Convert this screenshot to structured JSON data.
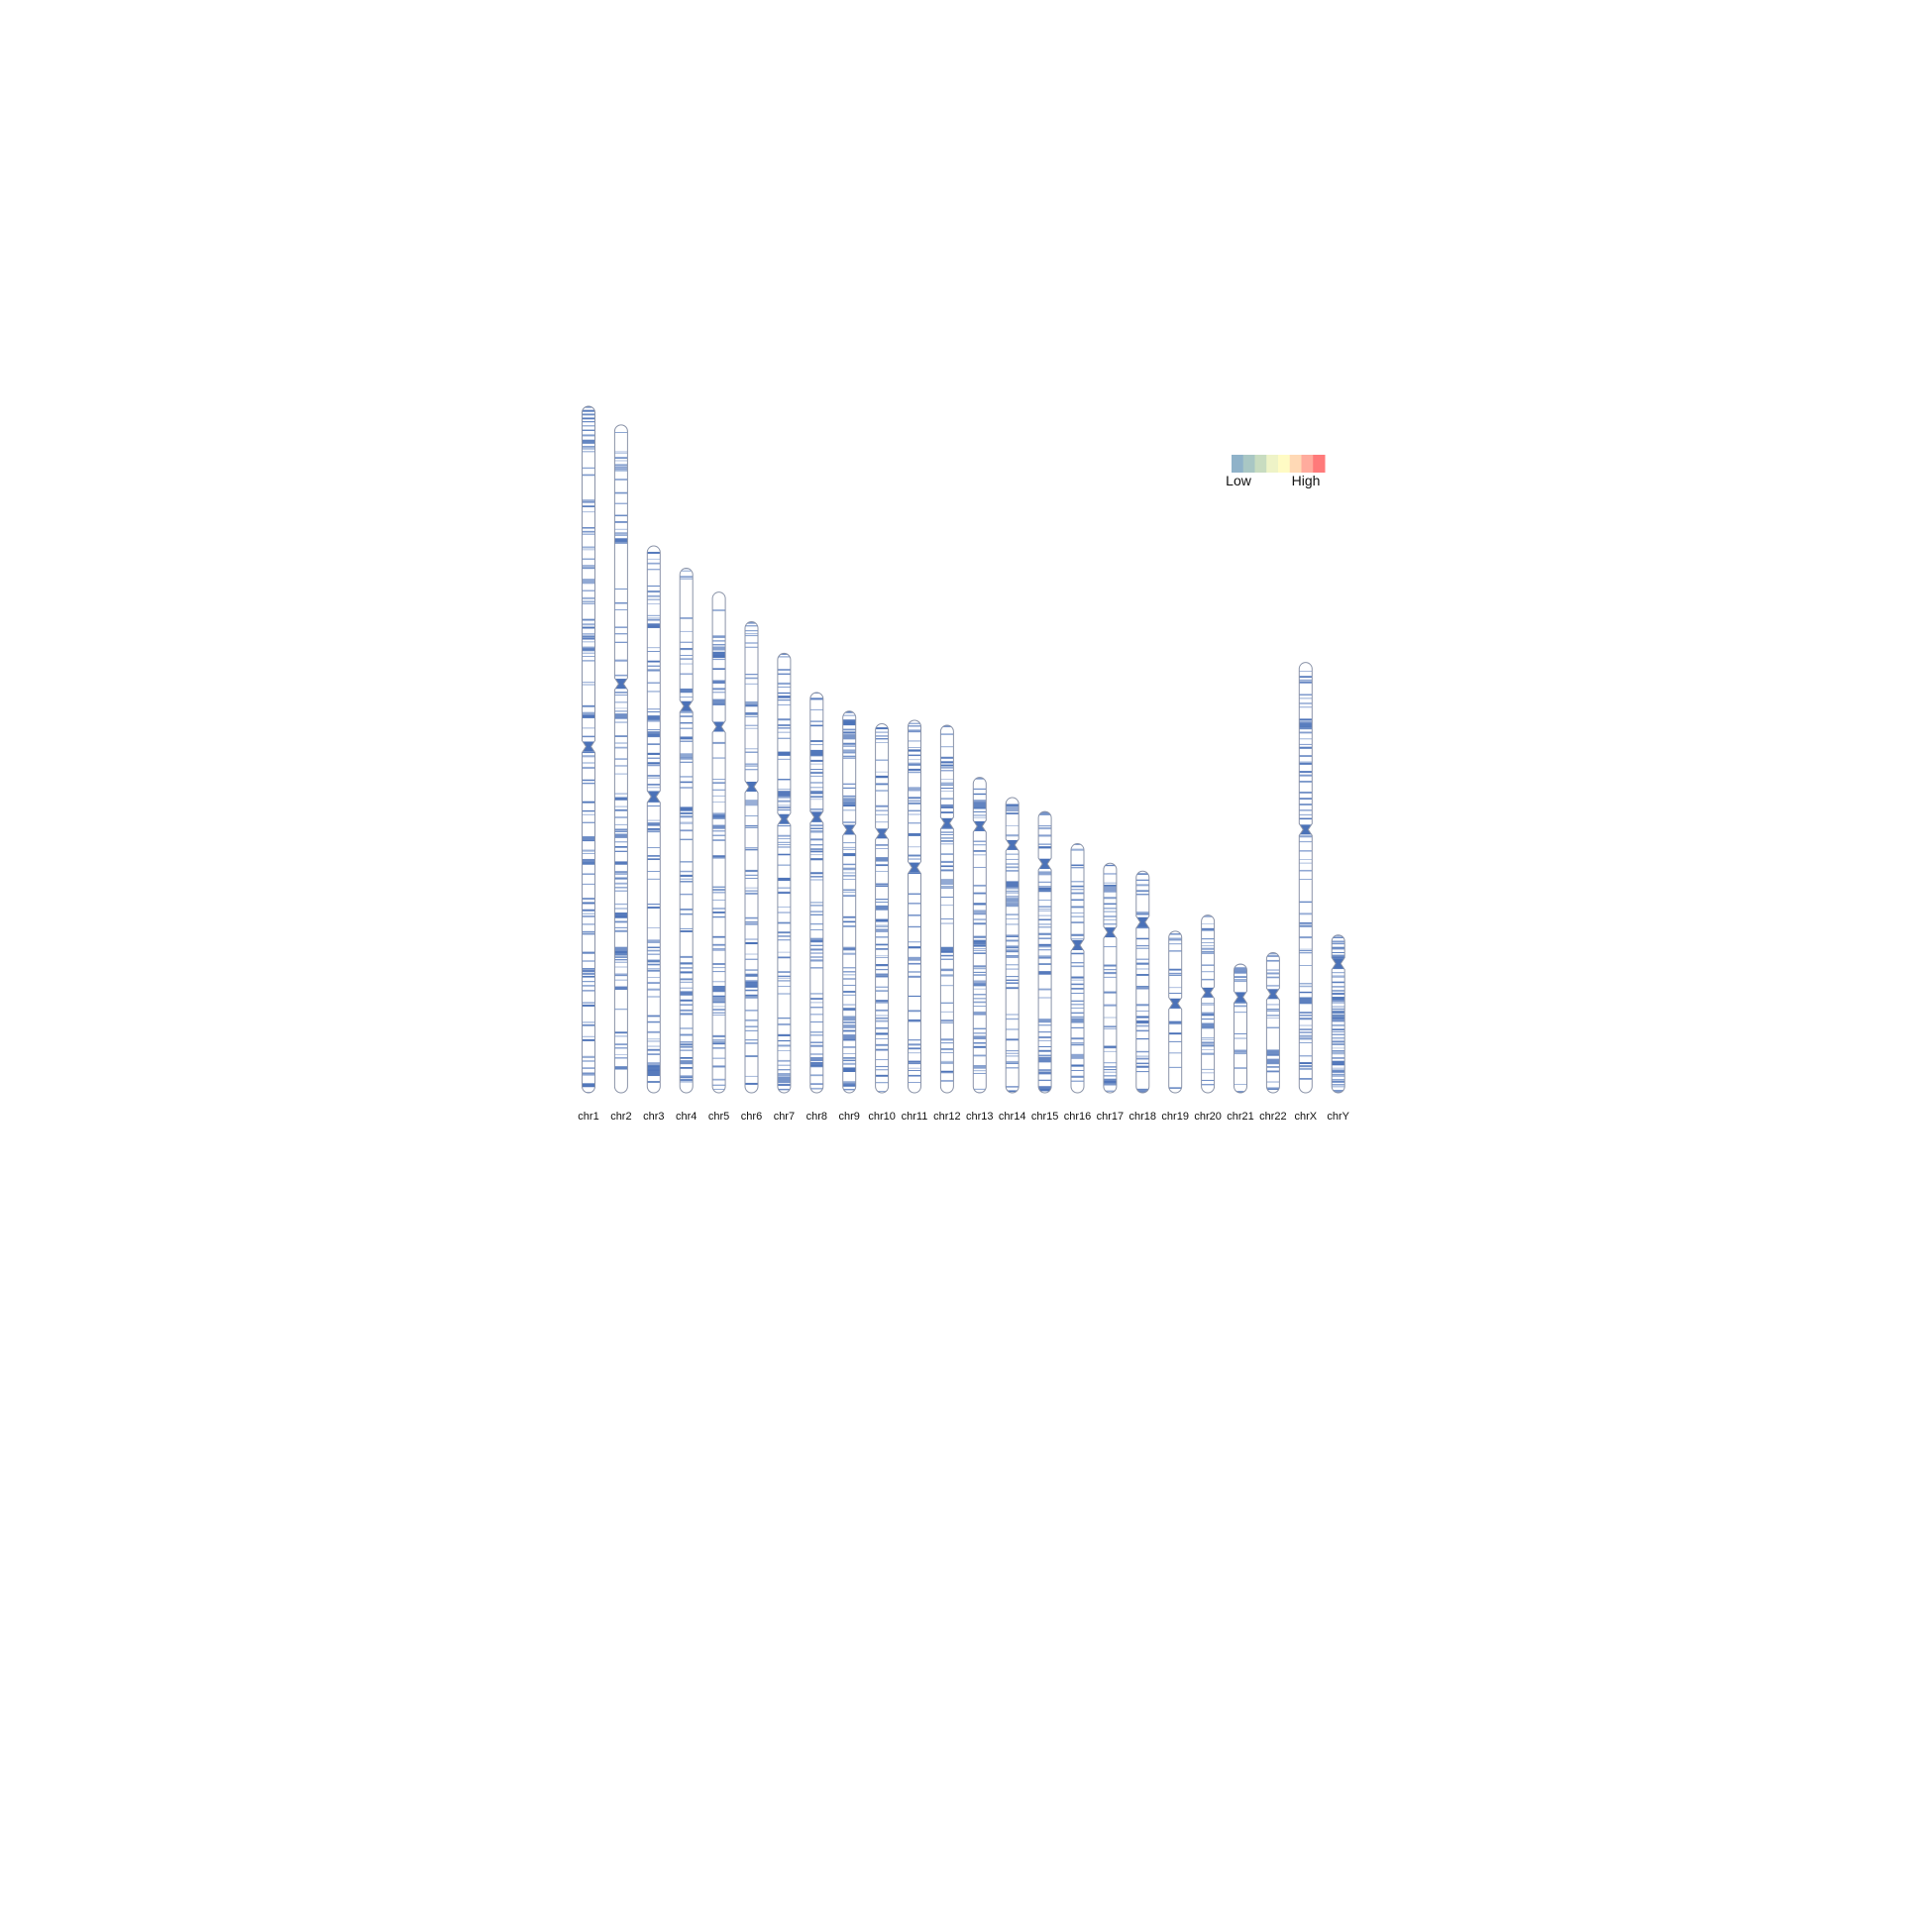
{
  "chart_data": {
    "type": "heatmap",
    "title": "",
    "xlabel": "",
    "ylabel": "",
    "legend": {
      "position": "top-right",
      "low_label": "Low",
      "high_label": "High",
      "colors": [
        "#8fb2c9",
        "#a9c7c4",
        "#c8dcc0",
        "#eef3c7",
        "#fffbc4",
        "#ffd9b5",
        "#ffab9d",
        "#ff7a7a"
      ]
    },
    "band_color": "#4b72b8",
    "outline_color": "#8a93a8",
    "chromosomes": [
      {
        "name": "chr1",
        "length": 248.96,
        "centromere": 123.4
      },
      {
        "name": "chr2",
        "length": 242.19,
        "centromere": 93.9
      },
      {
        "name": "chr3",
        "length": 198.3,
        "centromere": 90.9
      },
      {
        "name": "chr4",
        "length": 190.21,
        "centromere": 50.0
      },
      {
        "name": "chr5",
        "length": 181.54,
        "centromere": 48.8
      },
      {
        "name": "chr6",
        "length": 170.81,
        "centromere": 59.8
      },
      {
        "name": "chr7",
        "length": 159.35,
        "centromere": 60.1
      },
      {
        "name": "chr8",
        "length": 145.14,
        "centromere": 45.2
      },
      {
        "name": "chr9",
        "length": 138.39,
        "centromere": 43.0
      },
      {
        "name": "chr10",
        "length": 133.8,
        "centromere": 39.8
      },
      {
        "name": "chr11",
        "length": 135.09,
        "centromere": 53.4
      },
      {
        "name": "chr12",
        "length": 133.28,
        "centromere": 35.5
      },
      {
        "name": "chr13",
        "length": 114.36,
        "centromere": 17.7
      },
      {
        "name": "chr14",
        "length": 107.04,
        "centromere": 17.2
      },
      {
        "name": "chr15",
        "length": 101.99,
        "centromere": 19.0
      },
      {
        "name": "chr16",
        "length": 90.34,
        "centromere": 36.8
      },
      {
        "name": "chr17",
        "length": 83.26,
        "centromere": 25.1
      },
      {
        "name": "chr18",
        "length": 80.37,
        "centromere": 18.5
      },
      {
        "name": "chr19",
        "length": 58.62,
        "centromere": 26.2
      },
      {
        "name": "chr20",
        "length": 64.44,
        "centromere": 28.1
      },
      {
        "name": "chr21",
        "length": 46.71,
        "centromere": 12.0
      },
      {
        "name": "chr22",
        "length": 50.82,
        "centromere": 15.0
      },
      {
        "name": "chrX",
        "length": 156.04,
        "centromere": 60.6
      },
      {
        "name": "chrY",
        "length": 57.23,
        "centromere": 10.4
      }
    ]
  }
}
